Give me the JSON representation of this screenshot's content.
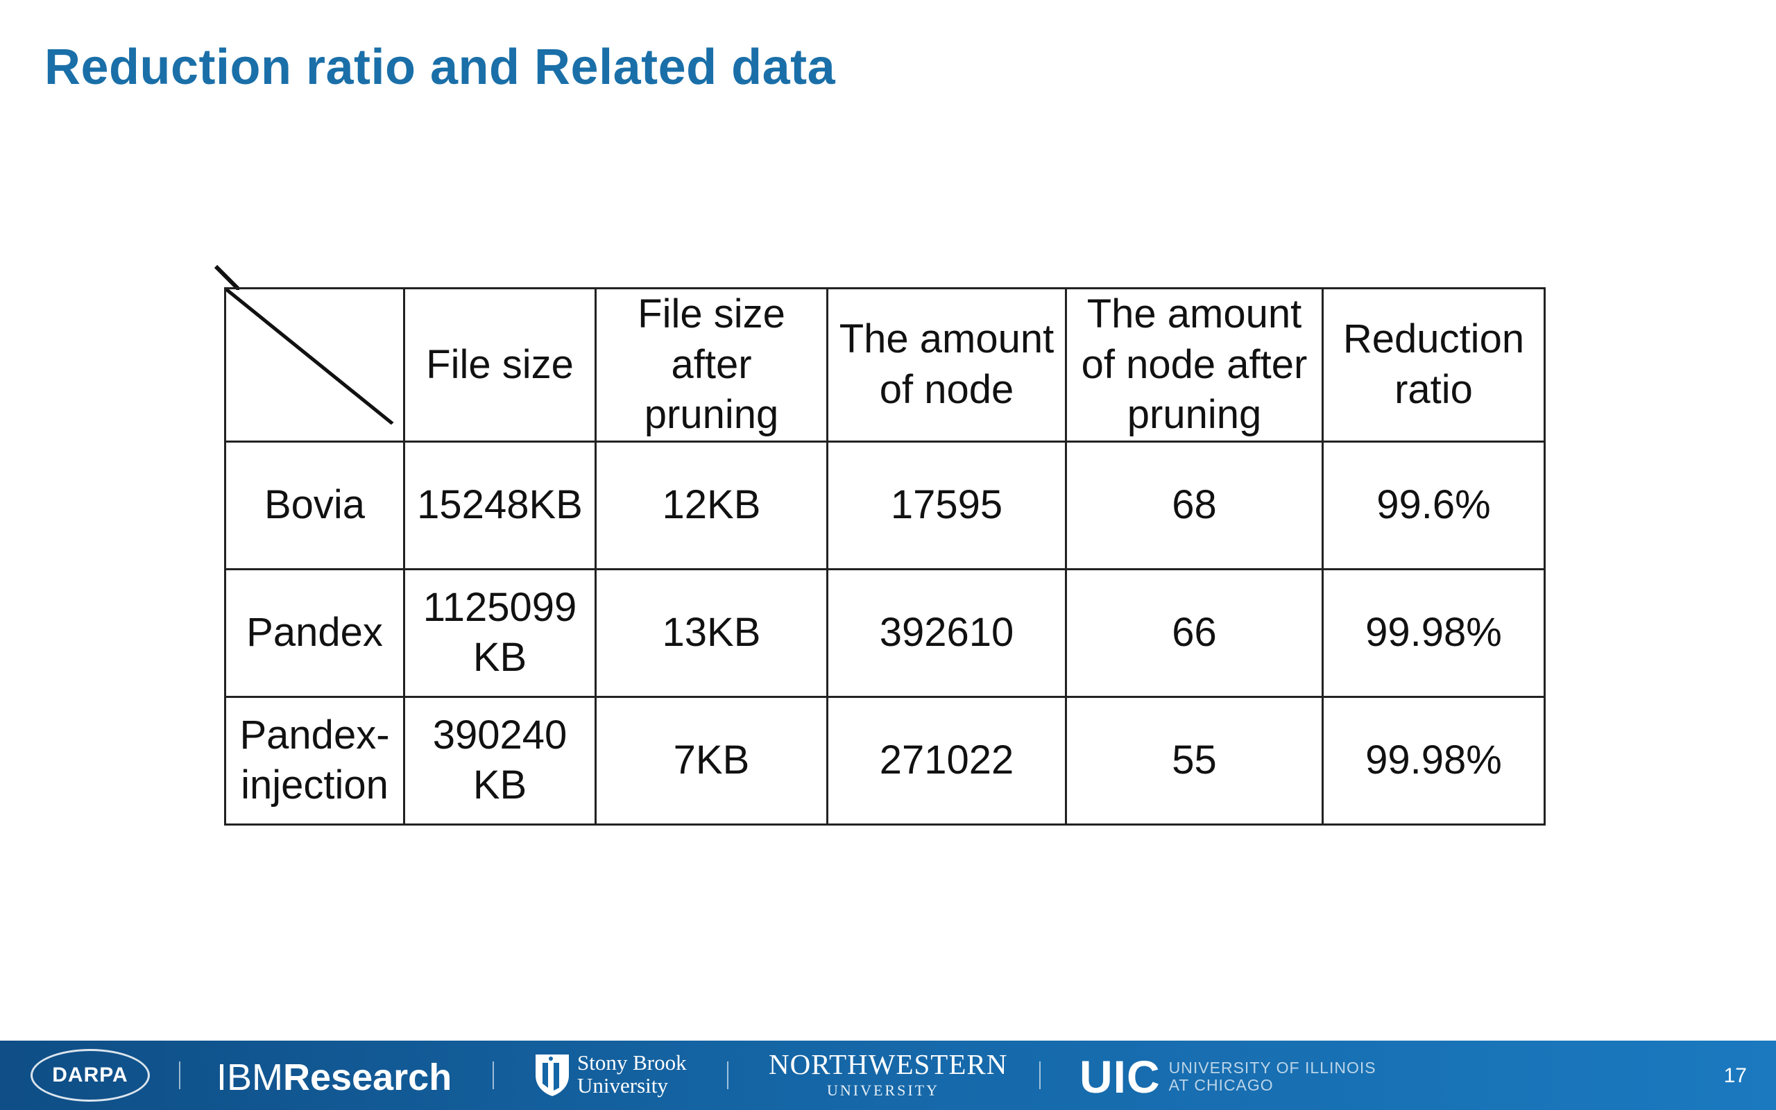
{
  "slide": {
    "title": "Reduction ratio and Related data"
  },
  "table": {
    "headers": [
      "",
      "File size",
      "File size after pruning",
      "The amount of node",
      "The amount of node after pruning",
      "Reduction ratio"
    ],
    "rows": [
      [
        "Bovia",
        "15248KB",
        "12KB",
        "17595",
        "68",
        "99.6%"
      ],
      [
        "Pandex",
        "1125099 KB",
        "13KB",
        "392610",
        "66",
        "99.98%"
      ],
      [
        "Pandex-injection",
        "390240 KB",
        "7KB",
        "271022",
        "55",
        "99.98%"
      ]
    ]
  },
  "footer": {
    "darpa": "DARPA",
    "ibm_light": "IBM",
    "ibm_bold": "Research",
    "stonybrook_line1": "Stony Brook",
    "stonybrook_line2": "University",
    "northwestern_main": "NORTHWESTERN",
    "northwestern_sub": "UNIVERSITY",
    "uic_main": "UIC",
    "uic_line1": "UNIVERSITY OF ILLINOIS",
    "uic_line2": "AT CHICAGO",
    "page_number": "17"
  }
}
